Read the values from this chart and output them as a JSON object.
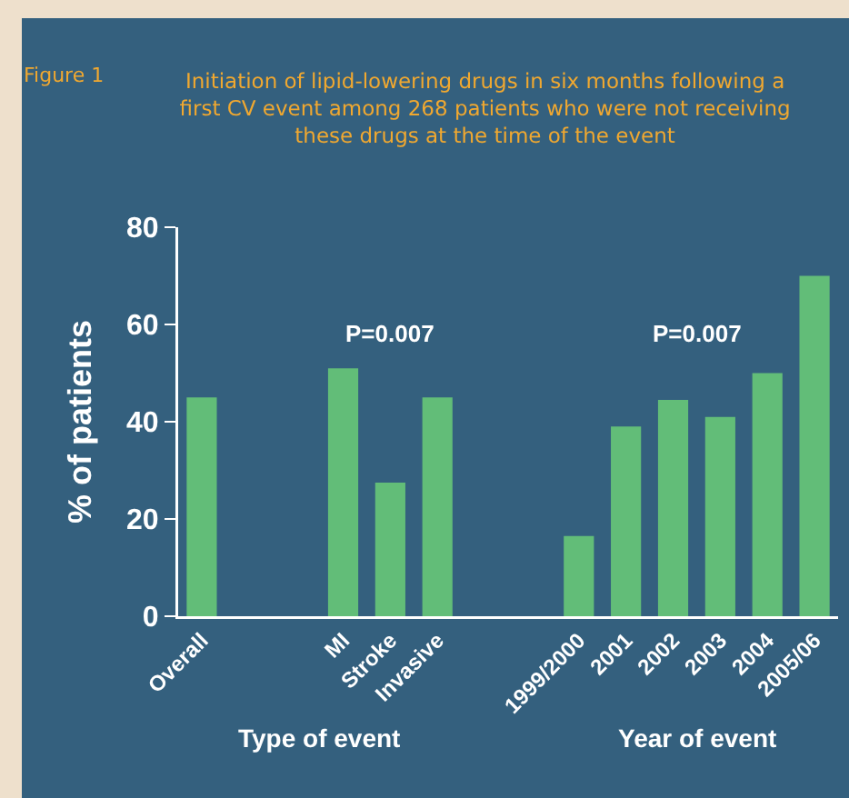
{
  "chart_data": {
    "type": "bar",
    "title": "Initiation of lipid-lowering drugs in six months following a first CV event among 268 patients who were not receiving these drugs at the time of the event",
    "ylabel": "% of patients",
    "categories": [
      "Overall",
      null,
      null,
      "MI",
      "Stroke",
      "Invasive",
      null,
      null,
      "1999/2000",
      "2001",
      "2002",
      "2003",
      "2004",
      "2005/06"
    ],
    "values": [
      45,
      null,
      null,
      51,
      27.5,
      45,
      null,
      null,
      16.5,
      39,
      44.5,
      41,
      50,
      70
    ],
    "color": "#62bd78",
    "ylim": [
      0,
      80
    ],
    "yticks": [
      0,
      20,
      40,
      60,
      80
    ],
    "annotations": [
      "Figure 1",
      "P=0.007",
      "P=0.007",
      "Type of event",
      "Year of event"
    ]
  }
}
